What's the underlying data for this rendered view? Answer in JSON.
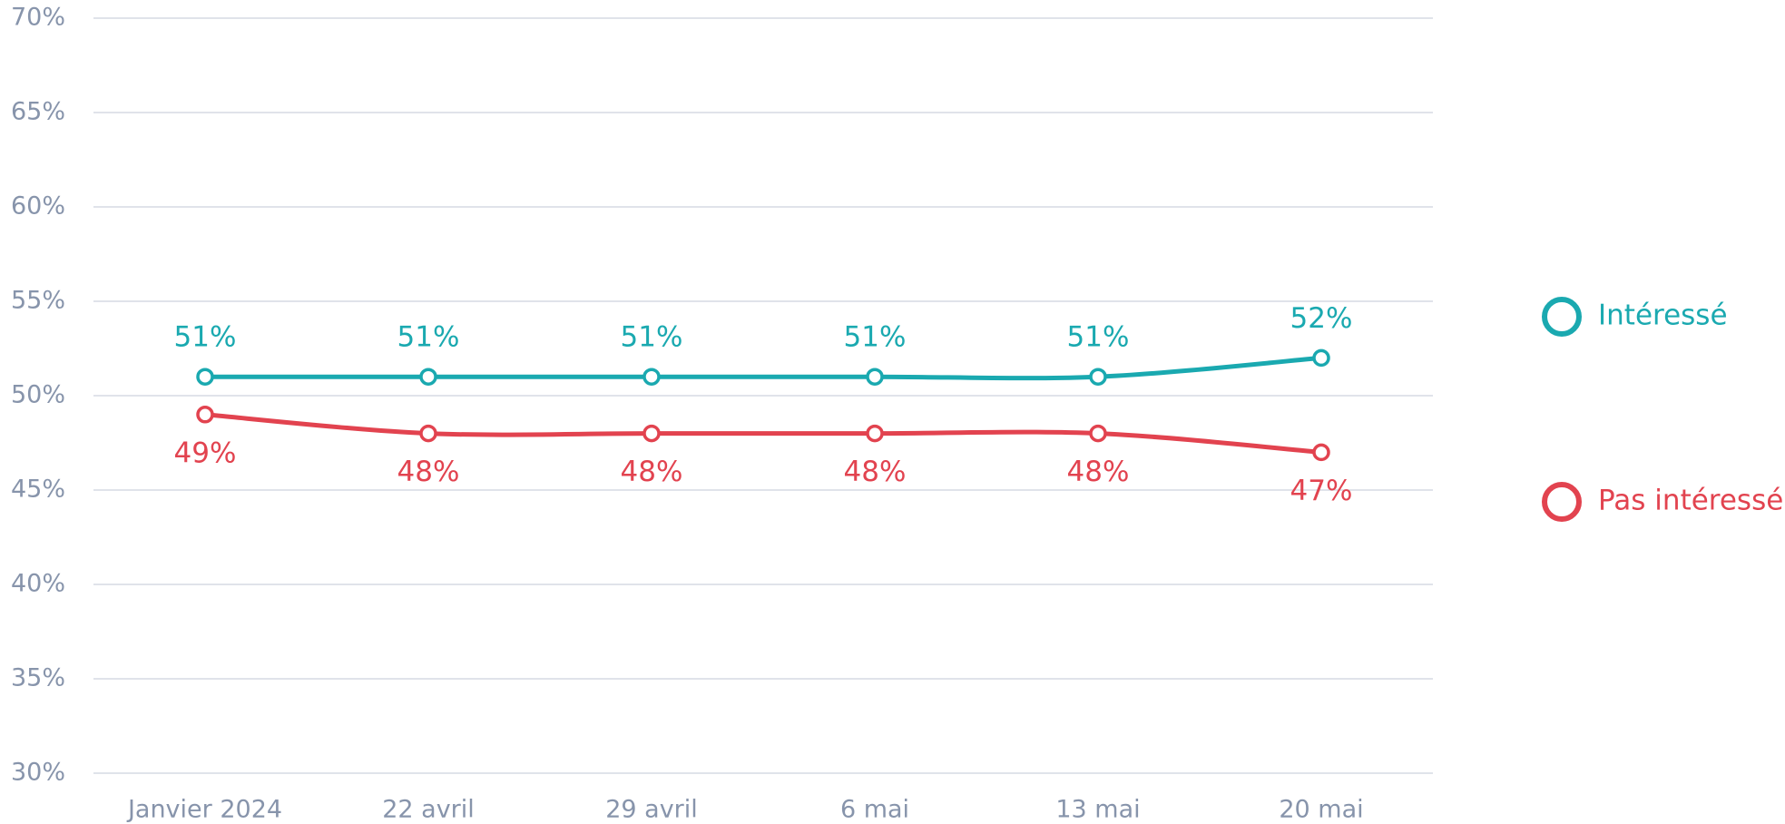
{
  "chart_data": {
    "type": "line",
    "categories": [
      "Janvier 2024",
      "22 avril",
      "29 avril",
      "6 mai",
      "13 mai",
      "20 mai"
    ],
    "series": [
      {
        "name": "Intéressé",
        "color": "#1aa9b0",
        "values": [
          51,
          51,
          51,
          51,
          51,
          52
        ],
        "value_labels": [
          "51%",
          "51%",
          "51%",
          "51%",
          "51%",
          "52%"
        ]
      },
      {
        "name": "Pas intéressé",
        "color": "#e2434f",
        "values": [
          49,
          48,
          48,
          48,
          48,
          47
        ],
        "value_labels": [
          "49%",
          "48%",
          "48%",
          "48%",
          "48%",
          "47%"
        ]
      }
    ],
    "ylim": [
      30,
      70
    ],
    "yticks": [
      {
        "value": 30,
        "label": "30%"
      },
      {
        "value": 35,
        "label": "35%"
      },
      {
        "value": 40,
        "label": "40%"
      },
      {
        "value": 45,
        "label": "45%"
      },
      {
        "value": 50,
        "label": "50%"
      },
      {
        "value": 55,
        "label": "55%"
      },
      {
        "value": 60,
        "label": "60%"
      },
      {
        "value": 65,
        "label": "65%"
      },
      {
        "value": 70,
        "label": "70%"
      }
    ],
    "grid": true,
    "legend": "right"
  }
}
